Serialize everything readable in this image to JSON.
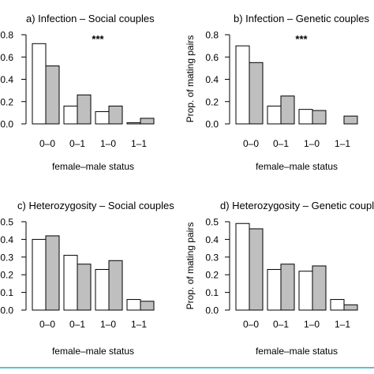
{
  "colors": {
    "white_bar": "#ffffff",
    "grey_bar": "#bfbfbf",
    "axis": "#000000",
    "accent_rule": "#5bc3d0"
  },
  "chart_data": [
    {
      "type": "bar",
      "title": "a) Infection – Social couples",
      "xlabel": "female–male status",
      "ylabel": "",
      "annotation": "***",
      "ylim": [
        0,
        0.8
      ],
      "yticks": [
        "0.0",
        "0.2",
        "0.4",
        "0.6",
        "0.8"
      ],
      "categories": [
        "0–0",
        "0–1",
        "1–0",
        "1–1"
      ],
      "series": [
        {
          "fill": "white",
          "values": [
            0.72,
            0.16,
            0.11,
            0.01
          ]
        },
        {
          "fill": "grey",
          "values": [
            0.52,
            0.26,
            0.16,
            0.05
          ]
        }
      ]
    },
    {
      "type": "bar",
      "title": "b) Infection – Genetic couples",
      "xlabel": "female–male status",
      "ylabel": "Prop. of mating pairs",
      "annotation": "***",
      "ylim": [
        0,
        0.8
      ],
      "yticks": [
        "0.0",
        "0.2",
        "0.4",
        "0.6",
        "0.8"
      ],
      "categories": [
        "0–0",
        "0–1",
        "1–0",
        "1–1"
      ],
      "series": [
        {
          "fill": "white",
          "values": [
            0.7,
            0.16,
            0.13,
            0.0
          ]
        },
        {
          "fill": "grey",
          "values": [
            0.55,
            0.25,
            0.12,
            0.07
          ]
        }
      ]
    },
    {
      "type": "bar",
      "title": "c) Heterozygosity – Social couples",
      "xlabel": "female–male status",
      "ylabel": "",
      "annotation": "",
      "ylim": [
        0,
        0.5
      ],
      "yticks": [
        "0.0",
        "0.1",
        "0.2",
        "0.3",
        "0.4",
        "0.5"
      ],
      "categories": [
        "0–0",
        "0–1",
        "1–0",
        "1–1"
      ],
      "series": [
        {
          "fill": "white",
          "values": [
            0.4,
            0.31,
            0.23,
            0.06
          ]
        },
        {
          "fill": "grey",
          "values": [
            0.42,
            0.26,
            0.28,
            0.05
          ]
        }
      ]
    },
    {
      "type": "bar",
      "title": "d) Heterozygosity – Genetic coupl",
      "xlabel": "female–male status",
      "ylabel": "Prop. of mating pairs",
      "annotation": "",
      "ylim": [
        0,
        0.5
      ],
      "yticks": [
        "0.0",
        "0.1",
        "0.2",
        "0.3",
        "0.4",
        "0.5"
      ],
      "categories": [
        "0–0",
        "0–1",
        "1–0",
        "1–1"
      ],
      "series": [
        {
          "fill": "white",
          "values": [
            0.49,
            0.23,
            0.22,
            0.06
          ]
        },
        {
          "fill": "grey",
          "values": [
            0.46,
            0.26,
            0.25,
            0.03
          ]
        }
      ]
    }
  ]
}
